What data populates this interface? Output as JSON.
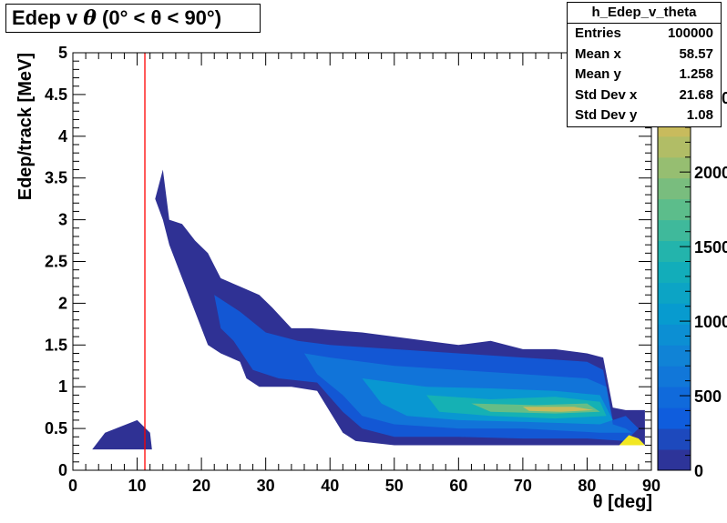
{
  "title": {
    "prefix": "Edep v ",
    "theta": "θ",
    "suffix": " (0° < θ < 90°)"
  },
  "stats": {
    "name": "h_Edep_v_theta",
    "rows": [
      {
        "label": "Entries",
        "value": "100000"
      },
      {
        "label": "Mean x",
        "value": "58.57"
      },
      {
        "label": "Mean y",
        "value": "1.258"
      },
      {
        "label": "Std Dev x",
        "value": "21.68"
      },
      {
        "label": "Std Dev y",
        "value": "1.08"
      }
    ]
  },
  "chart_data": {
    "type": "heatmap",
    "title": "Edep v θ (0° < θ < 90°)",
    "xlabel": "θ [deg]",
    "ylabel": "Edep/track [MeV]",
    "xlim": [
      0,
      90
    ],
    "ylim": [
      0,
      5
    ],
    "x_ticks": [
      "0",
      "10",
      "20",
      "30",
      "40",
      "50",
      "60",
      "70",
      "80",
      "90"
    ],
    "y_ticks": [
      "0",
      "0.5",
      "1",
      "1.5",
      "2",
      "2.5",
      "3",
      "3.5",
      "4",
      "4.5",
      "5"
    ],
    "z_ticks": [
      "0",
      "500",
      "1000",
      "1500",
      "2000",
      "2500"
    ],
    "colorbar_max": 2800,
    "cut_line_x": 11.2,
    "contours": [
      {
        "level": 50,
        "points": [
          [
            3,
            0.25
          ],
          [
            5,
            0.45
          ],
          [
            10,
            0.6
          ],
          [
            12,
            0.45
          ],
          [
            12.3,
            0.25
          ]
        ]
      },
      {
        "level": 50,
        "points": [
          [
            12.8,
            3.25
          ],
          [
            14,
            3.6
          ],
          [
            15,
            3.0
          ],
          [
            17,
            2.95
          ],
          [
            19,
            2.75
          ],
          [
            21,
            2.6
          ],
          [
            23,
            2.3
          ],
          [
            26,
            2.2
          ],
          [
            29,
            2.1
          ],
          [
            31,
            1.95
          ],
          [
            34,
            1.7
          ],
          [
            37,
            1.7
          ],
          [
            40,
            1.68
          ],
          [
            45,
            1.65
          ],
          [
            50,
            1.6
          ],
          [
            55,
            1.55
          ],
          [
            60,
            1.5
          ],
          [
            65,
            1.55
          ],
          [
            70,
            1.45
          ],
          [
            75,
            1.45
          ],
          [
            80,
            1.4
          ],
          [
            82.5,
            1.35
          ],
          [
            84,
            0.75
          ],
          [
            86,
            0.72
          ],
          [
            89,
            0.72
          ],
          [
            89,
            0.3
          ],
          [
            86,
            0.3
          ],
          [
            84,
            0.3
          ],
          [
            80,
            0.3
          ],
          [
            70,
            0.3
          ],
          [
            60,
            0.3
          ],
          [
            50,
            0.3
          ],
          [
            44,
            0.35
          ],
          [
            42,
            0.45
          ],
          [
            40,
            0.7
          ],
          [
            38,
            0.95
          ],
          [
            34,
            1.0
          ],
          [
            30,
            1.0
          ],
          [
            29,
            1.0
          ],
          [
            27,
            1.1
          ],
          [
            26,
            1.3
          ],
          [
            23,
            1.4
          ],
          [
            21,
            1.5
          ],
          [
            19,
            1.9
          ],
          [
            17,
            2.3
          ],
          [
            15,
            2.7
          ],
          [
            14,
            3.0
          ]
        ]
      },
      {
        "level": 300,
        "points": [
          [
            22,
            2.1
          ],
          [
            26,
            1.9
          ],
          [
            30,
            1.65
          ],
          [
            35,
            1.55
          ],
          [
            40,
            1.5
          ],
          [
            50,
            1.45
          ],
          [
            60,
            1.4
          ],
          [
            70,
            1.35
          ],
          [
            80,
            1.3
          ],
          [
            82.5,
            1.2
          ],
          [
            84,
            0.6
          ],
          [
            86,
            0.65
          ],
          [
            88,
            0.5
          ],
          [
            86,
            0.35
          ],
          [
            80,
            0.38
          ],
          [
            70,
            0.38
          ],
          [
            60,
            0.4
          ],
          [
            50,
            0.4
          ],
          [
            45,
            0.5
          ],
          [
            42,
            0.7
          ],
          [
            38,
            1.05
          ],
          [
            32,
            1.1
          ],
          [
            28,
            1.2
          ],
          [
            25,
            1.55
          ],
          [
            23,
            1.7
          ]
        ]
      },
      {
        "level": 600,
        "points": [
          [
            36,
            1.4
          ],
          [
            40,
            1.35
          ],
          [
            50,
            1.25
          ],
          [
            60,
            1.2
          ],
          [
            70,
            1.15
          ],
          [
            80,
            1.1
          ],
          [
            83,
            1.0
          ],
          [
            84,
            0.55
          ],
          [
            86,
            0.5
          ],
          [
            87,
            0.45
          ],
          [
            82,
            0.45
          ],
          [
            70,
            0.5
          ],
          [
            60,
            0.5
          ],
          [
            50,
            0.55
          ],
          [
            45,
            0.65
          ],
          [
            42,
            0.9
          ],
          [
            38,
            1.15
          ]
        ]
      },
      {
        "level": 1000,
        "points": [
          [
            45,
            1.1
          ],
          [
            55,
            1.0
          ],
          [
            65,
            0.98
          ],
          [
            75,
            0.95
          ],
          [
            82,
            0.9
          ],
          [
            84,
            0.6
          ],
          [
            82,
            0.55
          ],
          [
            70,
            0.58
          ],
          [
            60,
            0.6
          ],
          [
            52,
            0.65
          ],
          [
            48,
            0.8
          ]
        ]
      },
      {
        "level": 1400,
        "points": [
          [
            55,
            0.9
          ],
          [
            65,
            0.85
          ],
          [
            75,
            0.88
          ],
          [
            82,
            0.82
          ],
          [
            83,
            0.65
          ],
          [
            75,
            0.62
          ],
          [
            65,
            0.65
          ],
          [
            57,
            0.7
          ]
        ]
      },
      {
        "level": 1800,
        "points": [
          [
            62,
            0.8
          ],
          [
            72,
            0.78
          ],
          [
            80,
            0.8
          ],
          [
            82,
            0.7
          ],
          [
            75,
            0.68
          ],
          [
            65,
            0.7
          ]
        ]
      },
      {
        "level": 2300,
        "points": [
          [
            70,
            0.76
          ],
          [
            78,
            0.76
          ],
          [
            81,
            0.72
          ],
          [
            76,
            0.7
          ],
          [
            71,
            0.71
          ]
        ]
      },
      {
        "level": 2700,
        "points": [
          [
            85,
            0.3
          ],
          [
            86.5,
            0.42
          ],
          [
            88,
            0.38
          ],
          [
            89,
            0.3
          ]
        ]
      }
    ]
  }
}
